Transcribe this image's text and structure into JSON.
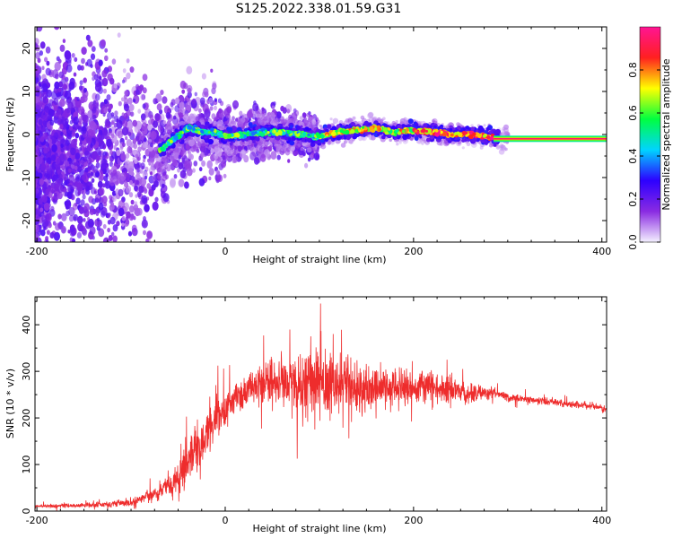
{
  "title": "S125.2022.338.01.59.G31",
  "chart_data": [
    {
      "type": "heatmap",
      "xlabel": "Height of straight line (km)",
      "ylabel": "Frequency (Hz)",
      "xlim": [
        -202,
        405
      ],
      "ylim": [
        -25,
        25
      ],
      "xticks": [
        -200,
        0,
        200,
        400
      ],
      "yticks": [
        -20,
        -10,
        0,
        10,
        20
      ],
      "colorbar": {
        "label": "Normalized spectral amplitude",
        "range": [
          0,
          1
        ],
        "ticks": [
          0.0,
          0.2,
          0.4,
          0.6,
          0.8
        ],
        "colors": [
          "#f4f0ff",
          "#8a2be2",
          "#2d00ff",
          "#00d4ff",
          "#00ff40",
          "#ffff00",
          "#ff2020",
          "#ff1493"
        ]
      },
      "ridge": {
        "x": [
          -70,
          -60,
          -50,
          -40,
          -30,
          -20,
          -10,
          0,
          20,
          40,
          60,
          80,
          100,
          120,
          140,
          160,
          180,
          200,
          220,
          240,
          260,
          280,
          300,
          340,
          400
        ],
        "y": [
          -4,
          -2,
          -0.5,
          1.5,
          1,
          0.5,
          0.5,
          -0.5,
          0,
          0.5,
          0.5,
          0,
          -0.5,
          0.5,
          1,
          1.5,
          0.5,
          1,
          0.5,
          0,
          0,
          -0.5,
          -1,
          -1,
          -1
        ]
      }
    },
    {
      "type": "line",
      "xlabel": "Height of straight line (km)",
      "ylabel": "SNR (10 * v/v)",
      "xlim": [
        -202,
        405
      ],
      "ylim": [
        0,
        460
      ],
      "xticks": [
        -200,
        0,
        200,
        400
      ],
      "yticks": [
        0,
        100,
        200,
        300,
        400
      ],
      "color": "#ee2c2c",
      "envelope": {
        "x": [
          -202,
          -150,
          -100,
          -90,
          -80,
          -70,
          -60,
          -50,
          -40,
          -30,
          -20,
          -10,
          0,
          10,
          20,
          30,
          40,
          60,
          80,
          90,
          100,
          120,
          140,
          160,
          180,
          200,
          220,
          240,
          260,
          280,
          300,
          320,
          340,
          360,
          380,
          405
        ],
        "mean": [
          10,
          12,
          18,
          25,
          35,
          40,
          55,
          70,
          100,
          130,
          170,
          200,
          220,
          240,
          255,
          265,
          275,
          280,
          270,
          285,
          275,
          270,
          265,
          265,
          270,
          265,
          265,
          260,
          250,
          255,
          245,
          240,
          235,
          230,
          228,
          220
        ],
        "spread": [
          6,
          8,
          12,
          15,
          22,
          25,
          40,
          60,
          70,
          80,
          75,
          70,
          60,
          55,
          55,
          60,
          70,
          90,
          110,
          130,
          120,
          100,
          90,
          70,
          70,
          60,
          55,
          50,
          30,
          20,
          15,
          14,
          14,
          12,
          12,
          12
        ]
      }
    }
  ]
}
